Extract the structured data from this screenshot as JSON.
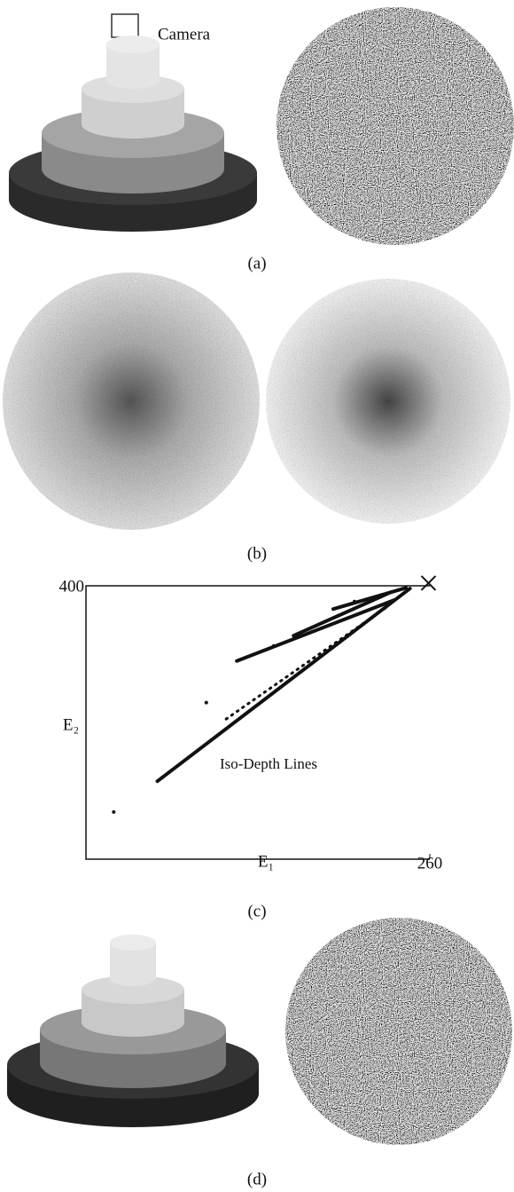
{
  "camera_label": "Camera",
  "captions": [
    "(a)",
    "(b)",
    "(c)",
    "(d)"
  ],
  "chart_data": {
    "type": "scatter",
    "xlabel": "E₁",
    "ylabel": "E₂",
    "annotation": "Iso-Depth Lines",
    "xlim": [
      0,
      260
    ],
    "ylim": [
      0,
      400
    ],
    "xticks": [
      260
    ],
    "yticks": [
      400
    ],
    "series": [
      {
        "mode": "line",
        "color": "#111111",
        "x": [
          54,
          245
        ],
        "values": [
          114,
          396
        ]
      },
      {
        "mode": "dotted",
        "color": "#111111",
        "x": [
          106,
          229
        ],
        "values": [
          205,
          371
        ]
      },
      {
        "mode": "line",
        "color": "#111111",
        "x": [
          114,
          233
        ],
        "values": [
          290,
          379
        ]
      },
      {
        "mode": "line",
        "color": "#111111",
        "x": [
          157,
          231
        ],
        "values": [
          327,
          391
        ]
      },
      {
        "mode": "line",
        "color": "#111111",
        "x": [
          187,
          242
        ],
        "values": [
          366,
          397
        ]
      },
      {
        "mode": "points",
        "color": "#111111",
        "x": [
          21,
          91,
          142,
          203
        ],
        "values": [
          69,
          229,
          312,
          377
        ]
      },
      {
        "mode": "cross",
        "color": "#111111",
        "x": [
          259
        ],
        "values": [
          404
        ]
      }
    ]
  }
}
